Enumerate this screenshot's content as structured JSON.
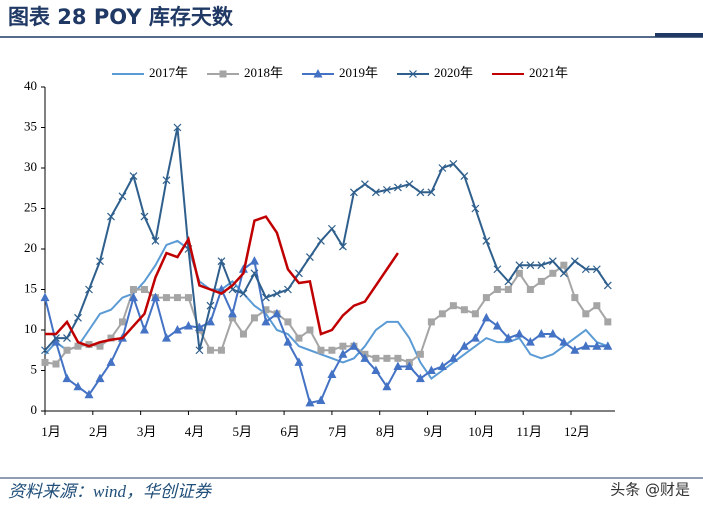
{
  "header": {
    "title": "图表 28 POY 库存天数"
  },
  "footer": {
    "source": "资料来源：wind，华创证券",
    "watermark": "头条 @财是"
  },
  "chart_data": {
    "type": "line",
    "legend": "top",
    "grid": false,
    "x": [
      1,
      1.23,
      1.46,
      1.69,
      1.92,
      2.15,
      2.38,
      2.62,
      2.85,
      3.08,
      3.31,
      3.54,
      3.77,
      4,
      4.23,
      4.46,
      4.69,
      4.92,
      5.15,
      5.38,
      5.62,
      5.85,
      6.08,
      6.31,
      6.54,
      6.77,
      7,
      7.23,
      7.46,
      7.69,
      7.92,
      8.15,
      8.38,
      8.62,
      8.85,
      9.08,
      9.31,
      9.54,
      9.77,
      10,
      10.23,
      10.46,
      10.69,
      10.92,
      11.15,
      11.38,
      11.62,
      11.85,
      12.08,
      12.31,
      12.54,
      12.77
    ],
    "xlim": [
      1,
      12.92
    ],
    "xticks": [
      {
        "value": 1,
        "label": "1月"
      },
      {
        "value": 2,
        "label": "2月"
      },
      {
        "value": 3,
        "label": "3月"
      },
      {
        "value": 4,
        "label": "4月"
      },
      {
        "value": 5,
        "label": "5月"
      },
      {
        "value": 6,
        "label": "6月"
      },
      {
        "value": 7,
        "label": "7月"
      },
      {
        "value": 8,
        "label": "8月"
      },
      {
        "value": 9,
        "label": "9月"
      },
      {
        "value": 10,
        "label": "10月"
      },
      {
        "value": 11,
        "label": "11月"
      },
      {
        "value": 12,
        "label": "12月"
      }
    ],
    "ylim": [
      0,
      40
    ],
    "yticks": [
      0,
      5,
      10,
      15,
      20,
      25,
      30,
      35,
      40
    ],
    "series": [
      {
        "name": "2017年",
        "color": "#5b9bd5",
        "marker": "none",
        "values": [
          7,
          8.5,
          7.5,
          8,
          10,
          12,
          12.5,
          14,
          14.5,
          16,
          18,
          20.5,
          21,
          20,
          16,
          15,
          15,
          16,
          14.5,
          13,
          12,
          10,
          9.5,
          8,
          7.5,
          7,
          6.5,
          6,
          6.5,
          8,
          10,
          11,
          11,
          9,
          6,
          4,
          5,
          6,
          7,
          8,
          9,
          8.5,
          8.5,
          9,
          7,
          6.5,
          7,
          8,
          9,
          10,
          8.5,
          8
        ]
      },
      {
        "name": "2018年",
        "color": "#a5a5a5",
        "marker": "square",
        "values": [
          6,
          5.8,
          7.5,
          8,
          8.2,
          8,
          9,
          11,
          15,
          15,
          14,
          14,
          14,
          14,
          10,
          7.5,
          7.5,
          11.5,
          9.5,
          11.5,
          12.5,
          12,
          11,
          9,
          10,
          7.5,
          7.5,
          8,
          8,
          7,
          6.5,
          6.5,
          6.5,
          6,
          7,
          11,
          12,
          13,
          12.5,
          12,
          14,
          15,
          15,
          17,
          15,
          16,
          17,
          18,
          14,
          12,
          13,
          11
        ]
      },
      {
        "name": "2019年",
        "color": "#4472c4",
        "marker": "triangle",
        "values": [
          14,
          8.5,
          4,
          3,
          2,
          4,
          6,
          9,
          14,
          10,
          14,
          9,
          10,
          10.5,
          10.3,
          11,
          15,
          12,
          17.5,
          18.5,
          11,
          12,
          8.5,
          6,
          1,
          1.3,
          4.5,
          7,
          8,
          6.5,
          5,
          3,
          5.5,
          5.5,
          4,
          5,
          5.5,
          6.5,
          8,
          9,
          11.5,
          10.5,
          9,
          9.5,
          8.5,
          9.5,
          9.5,
          8.5,
          7.5,
          8,
          8,
          8
        ]
      },
      {
        "name": "2020年",
        "color": "#2f5f8c",
        "marker": "cross",
        "values": [
          7.5,
          9,
          9,
          11.5,
          15,
          18.5,
          24,
          26.5,
          29,
          24,
          21,
          28.5,
          35,
          20,
          7.5,
          13,
          18.5,
          15,
          14.5,
          17,
          14,
          14.5,
          15,
          17,
          19,
          21,
          22.5,
          20.3,
          27,
          28,
          27,
          27.3,
          27.6,
          28,
          27,
          27,
          30,
          30.5,
          29,
          25,
          21,
          17.5,
          16,
          18,
          18,
          18,
          18.5,
          17,
          18.5,
          17.5,
          17.5,
          15.5
        ]
      },
      {
        "name": "2021年",
        "color": "#c00000",
        "marker": "none",
        "values": [
          9.5,
          9.5,
          11,
          8.5,
          8,
          8.5,
          8.8,
          9,
          10.5,
          12,
          16.5,
          19.5,
          19,
          21.2,
          15.5,
          15,
          14.5,
          15.5,
          17,
          23.5,
          24,
          22,
          17.5,
          15.8,
          16,
          9.5,
          10,
          11.8,
          13,
          13.5,
          15.5,
          17.5,
          19.5,
          null,
          null,
          null,
          null,
          null,
          null,
          null,
          null,
          null,
          null,
          null,
          null,
          null,
          null,
          null,
          null,
          null,
          null,
          null
        ]
      }
    ]
  }
}
